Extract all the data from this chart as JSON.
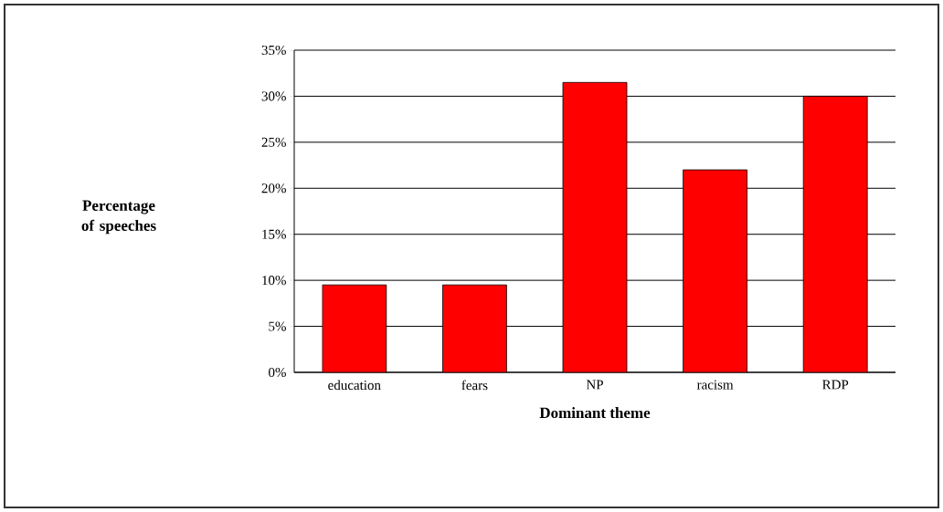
{
  "chart_data": {
    "type": "bar",
    "xlabel": "Dominant theme",
    "annotations": [
      "Percentage of speeches"
    ],
    "categories": [
      "education",
      "fears",
      "NP",
      "racism",
      "RDP"
    ],
    "values": [
      9.5,
      9.5,
      31.5,
      22,
      30
    ],
    "color": "#ff0000",
    "ylim": [
      0,
      35
    ],
    "yticks": [
      {
        "value": 0,
        "label": "0%"
      },
      {
        "value": 5,
        "label": "5%"
      },
      {
        "value": 10,
        "label": "10%"
      },
      {
        "value": 15,
        "label": "15%"
      },
      {
        "value": 20,
        "label": "20%"
      },
      {
        "value": 25,
        "label": "25%"
      },
      {
        "value": 30,
        "label": "30%"
      },
      {
        "value": 35,
        "label": "35%"
      }
    ],
    "grid": "y"
  }
}
